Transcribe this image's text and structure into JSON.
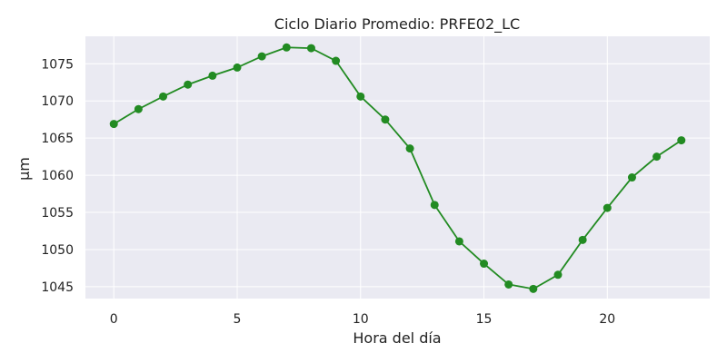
{
  "chart_data": {
    "type": "line",
    "title": "Ciclo Diario Promedio: PRFE02_LC",
    "xlabel": "Hora del día",
    "ylabel": "µm",
    "xlim": [
      -1.15,
      24.15
    ],
    "ylim": [
      1043.4,
      1078.7
    ],
    "xticks": [
      0,
      5,
      10,
      15,
      20
    ],
    "yticks": [
      1045,
      1050,
      1055,
      1060,
      1065,
      1070,
      1075
    ],
    "grid": true,
    "series": [
      {
        "color": "#228b22",
        "x": [
          0,
          1,
          2,
          3,
          4,
          5,
          6,
          7,
          8,
          9,
          10,
          11,
          12,
          13,
          14,
          15,
          16,
          17,
          18,
          19,
          20,
          21,
          22,
          23
        ],
        "y": [
          1066.9,
          1068.9,
          1070.6,
          1072.2,
          1073.4,
          1074.5,
          1076.0,
          1077.2,
          1077.1,
          1075.4,
          1070.6,
          1067.5,
          1063.6,
          1056.0,
          1051.1,
          1048.1,
          1045.3,
          1044.7,
          1046.6,
          1051.3,
          1055.6,
          1059.7,
          1062.5,
          1064.7
        ]
      }
    ]
  }
}
